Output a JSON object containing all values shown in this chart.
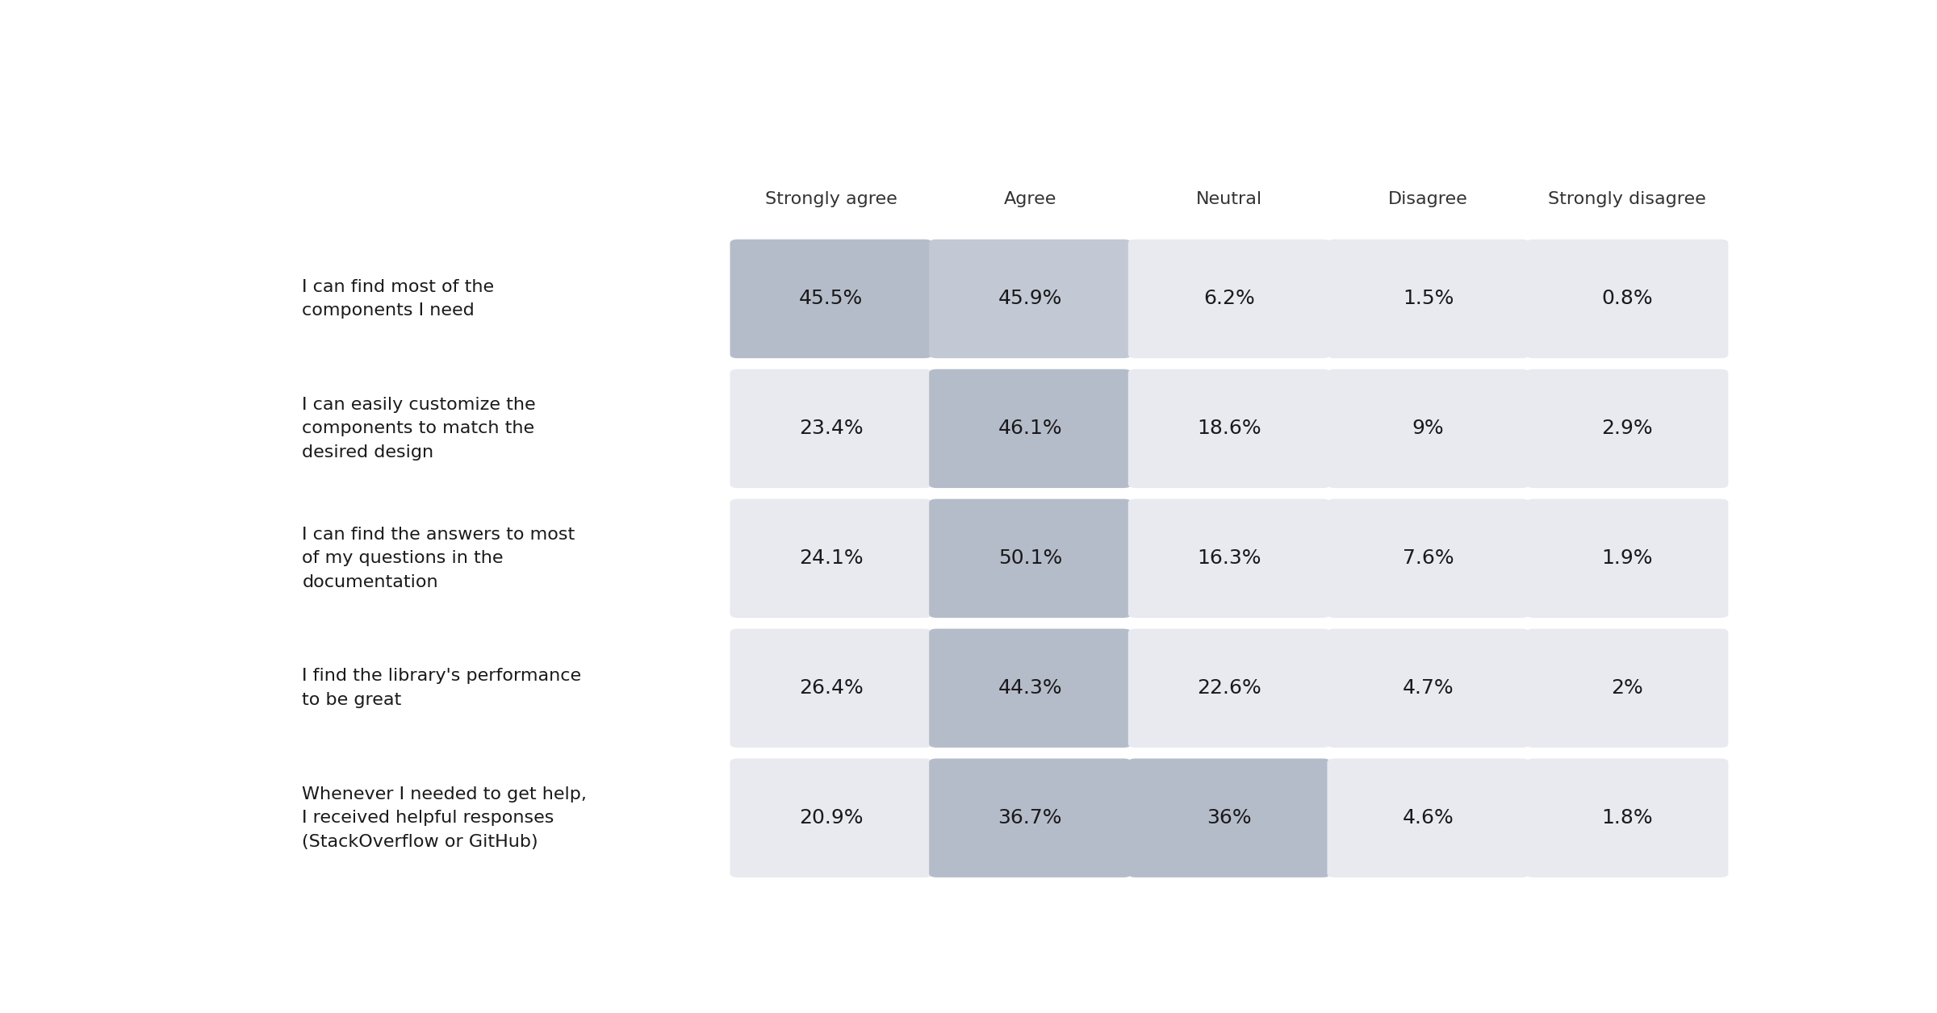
{
  "columns": [
    "Strongly agree",
    "Agree",
    "Neutral",
    "Disagree",
    "Strongly disagree"
  ],
  "rows": [
    {
      "label": "I can find most of the\ncomponents I need",
      "values": [
        "45.5%",
        "45.9%",
        "6.2%",
        "1.5%",
        "0.8%"
      ]
    },
    {
      "label": "I can easily customize the\ncomponents to match the\ndesired design",
      "values": [
        "23.4%",
        "46.1%",
        "18.6%",
        "9%",
        "2.9%"
      ]
    },
    {
      "label": "I can find the answers to most\nof my questions in the\ndocumentation",
      "values": [
        "24.1%",
        "50.1%",
        "16.3%",
        "7.6%",
        "1.9%"
      ]
    },
    {
      "label": "I find the library's performance\nto be great",
      "values": [
        "26.4%",
        "44.3%",
        "22.6%",
        "4.7%",
        "2%"
      ]
    },
    {
      "label": "Whenever I needed to get help,\nI received helpful responses\n(StackOverflow or GitHub)",
      "values": [
        "20.9%",
        "36.7%",
        "36%",
        "4.6%",
        "1.8%"
      ]
    }
  ],
  "cell_colors": [
    [
      "#b5bcc9",
      "#c2c8d4",
      "#e8eaf0",
      "#e8eaf0",
      "#e8eaf0"
    ],
    [
      "#e8eaf0",
      "#b5bcc9",
      "#e8eaf0",
      "#e8eaf0",
      "#e8eaf0"
    ],
    [
      "#e8eaf0",
      "#b5bcc9",
      "#e8eaf0",
      "#e8eaf0",
      "#e8eaf0"
    ],
    [
      "#e8eaf0",
      "#b5bcc9",
      "#e8eaf0",
      "#e8eaf0",
      "#e8eaf0"
    ],
    [
      "#e8eaf0",
      "#b5bcc9",
      "#b5bcc9",
      "#e8eaf0",
      "#e8eaf0"
    ]
  ],
  "background_color": "#ffffff",
  "text_color": "#1a1a1a",
  "header_color": "#333333",
  "cell_text_fontsize": 18,
  "header_fontsize": 16,
  "label_fontsize": 16,
  "fig_width": 24.0,
  "fig_height": 12.56
}
